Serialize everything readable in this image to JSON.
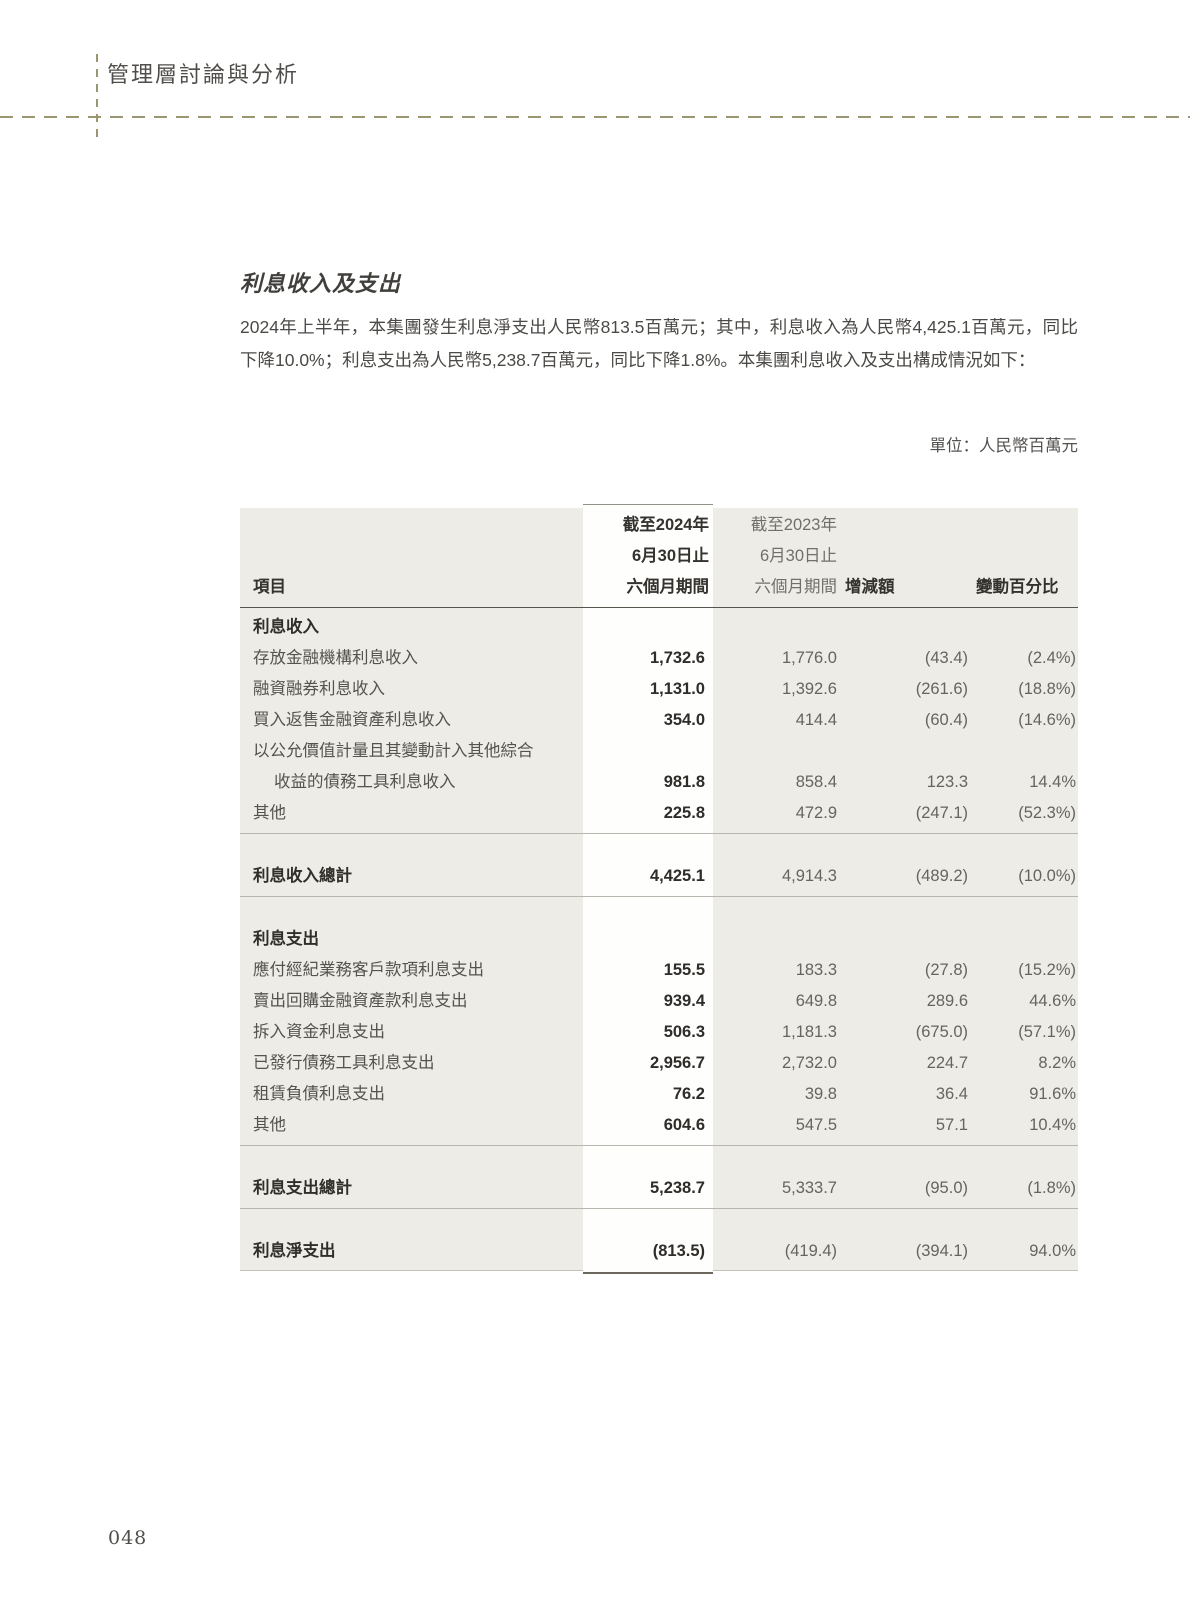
{
  "page": {
    "header_title": "管理層討論與分析",
    "page_number": "048"
  },
  "section": {
    "title": "利息收入及支出",
    "paragraph": "2024年上半年，本集團發生利息淨支出人民幣813.5百萬元；其中，利息收入為人民幣4,425.1百萬元，同比下降10.0%；利息支出為人民幣5,238.7百萬元，同比下降1.8%。本集團利息收入及支出構成情況如下：",
    "unit_note": "單位：人民幣百萬元"
  },
  "table": {
    "header": {
      "item": "項目",
      "col_2024": [
        "截至2024年",
        "6月30日止",
        "六個月期間"
      ],
      "col_2023": [
        "截至2023年",
        "6月30日止",
        "六個月期間"
      ],
      "change": "增減額",
      "change_pct": "變動百分比"
    },
    "rows": [
      {
        "label": "利息收入",
        "v2024": "",
        "v2023": "",
        "chg": "",
        "pct": ""
      },
      {
        "label": "存放金融機構利息收入",
        "v2024": "1,732.6",
        "v2023": "1,776.0",
        "chg": "(43.4)",
        "pct": "(2.4%)"
      },
      {
        "label": "融資融券利息收入",
        "v2024": "1,131.0",
        "v2023": "1,392.6",
        "chg": "(261.6)",
        "pct": "(18.8%)"
      },
      {
        "label": "買入返售金融資產利息收入",
        "v2024": "354.0",
        "v2023": "414.4",
        "chg": "(60.4)",
        "pct": "(14.6%)"
      },
      {
        "label": "以公允價值計量且其變動計入其他綜合",
        "v2024": "",
        "v2023": "",
        "chg": "",
        "pct": ""
      },
      {
        "label": "收益的債務工具利息收入",
        "v2024": "981.8",
        "v2023": "858.4",
        "chg": "123.3",
        "pct": "14.4%"
      },
      {
        "label": "其他",
        "v2024": "225.8",
        "v2023": "472.9",
        "chg": "(247.1)",
        "pct": "(52.3%)"
      },
      {
        "label": "利息收入總計",
        "v2024": "4,425.1",
        "v2023": "4,914.3",
        "chg": "(489.2)",
        "pct": "(10.0%)"
      },
      {
        "label": "利息支出",
        "v2024": "",
        "v2023": "",
        "chg": "",
        "pct": ""
      },
      {
        "label": "應付經紀業務客戶款項利息支出",
        "v2024": "155.5",
        "v2023": "183.3",
        "chg": "(27.8)",
        "pct": "(15.2%)"
      },
      {
        "label": "賣出回購金融資產款利息支出",
        "v2024": "939.4",
        "v2023": "649.8",
        "chg": "289.6",
        "pct": "44.6%"
      },
      {
        "label": "拆入資金利息支出",
        "v2024": "506.3",
        "v2023": "1,181.3",
        "chg": "(675.0)",
        "pct": "(57.1%)"
      },
      {
        "label": "已發行債務工具利息支出",
        "v2024": "2,956.7",
        "v2023": "2,732.0",
        "chg": "224.7",
        "pct": "8.2%"
      },
      {
        "label": "租賃負債利息支出",
        "v2024": "76.2",
        "v2023": "39.8",
        "chg": "36.4",
        "pct": "91.6%"
      },
      {
        "label": "其他",
        "v2024": "604.6",
        "v2023": "547.5",
        "chg": "57.1",
        "pct": "10.4%"
      },
      {
        "label": "利息支出總計",
        "v2024": "5,238.7",
        "v2023": "5,333.7",
        "chg": "(95.0)",
        "pct": "(1.8%)"
      },
      {
        "label": "利息淨支出",
        "v2024": "(813.5)",
        "v2023": "(419.4)",
        "chg": "(394.1)",
        "pct": "94.0%"
      }
    ]
  }
}
